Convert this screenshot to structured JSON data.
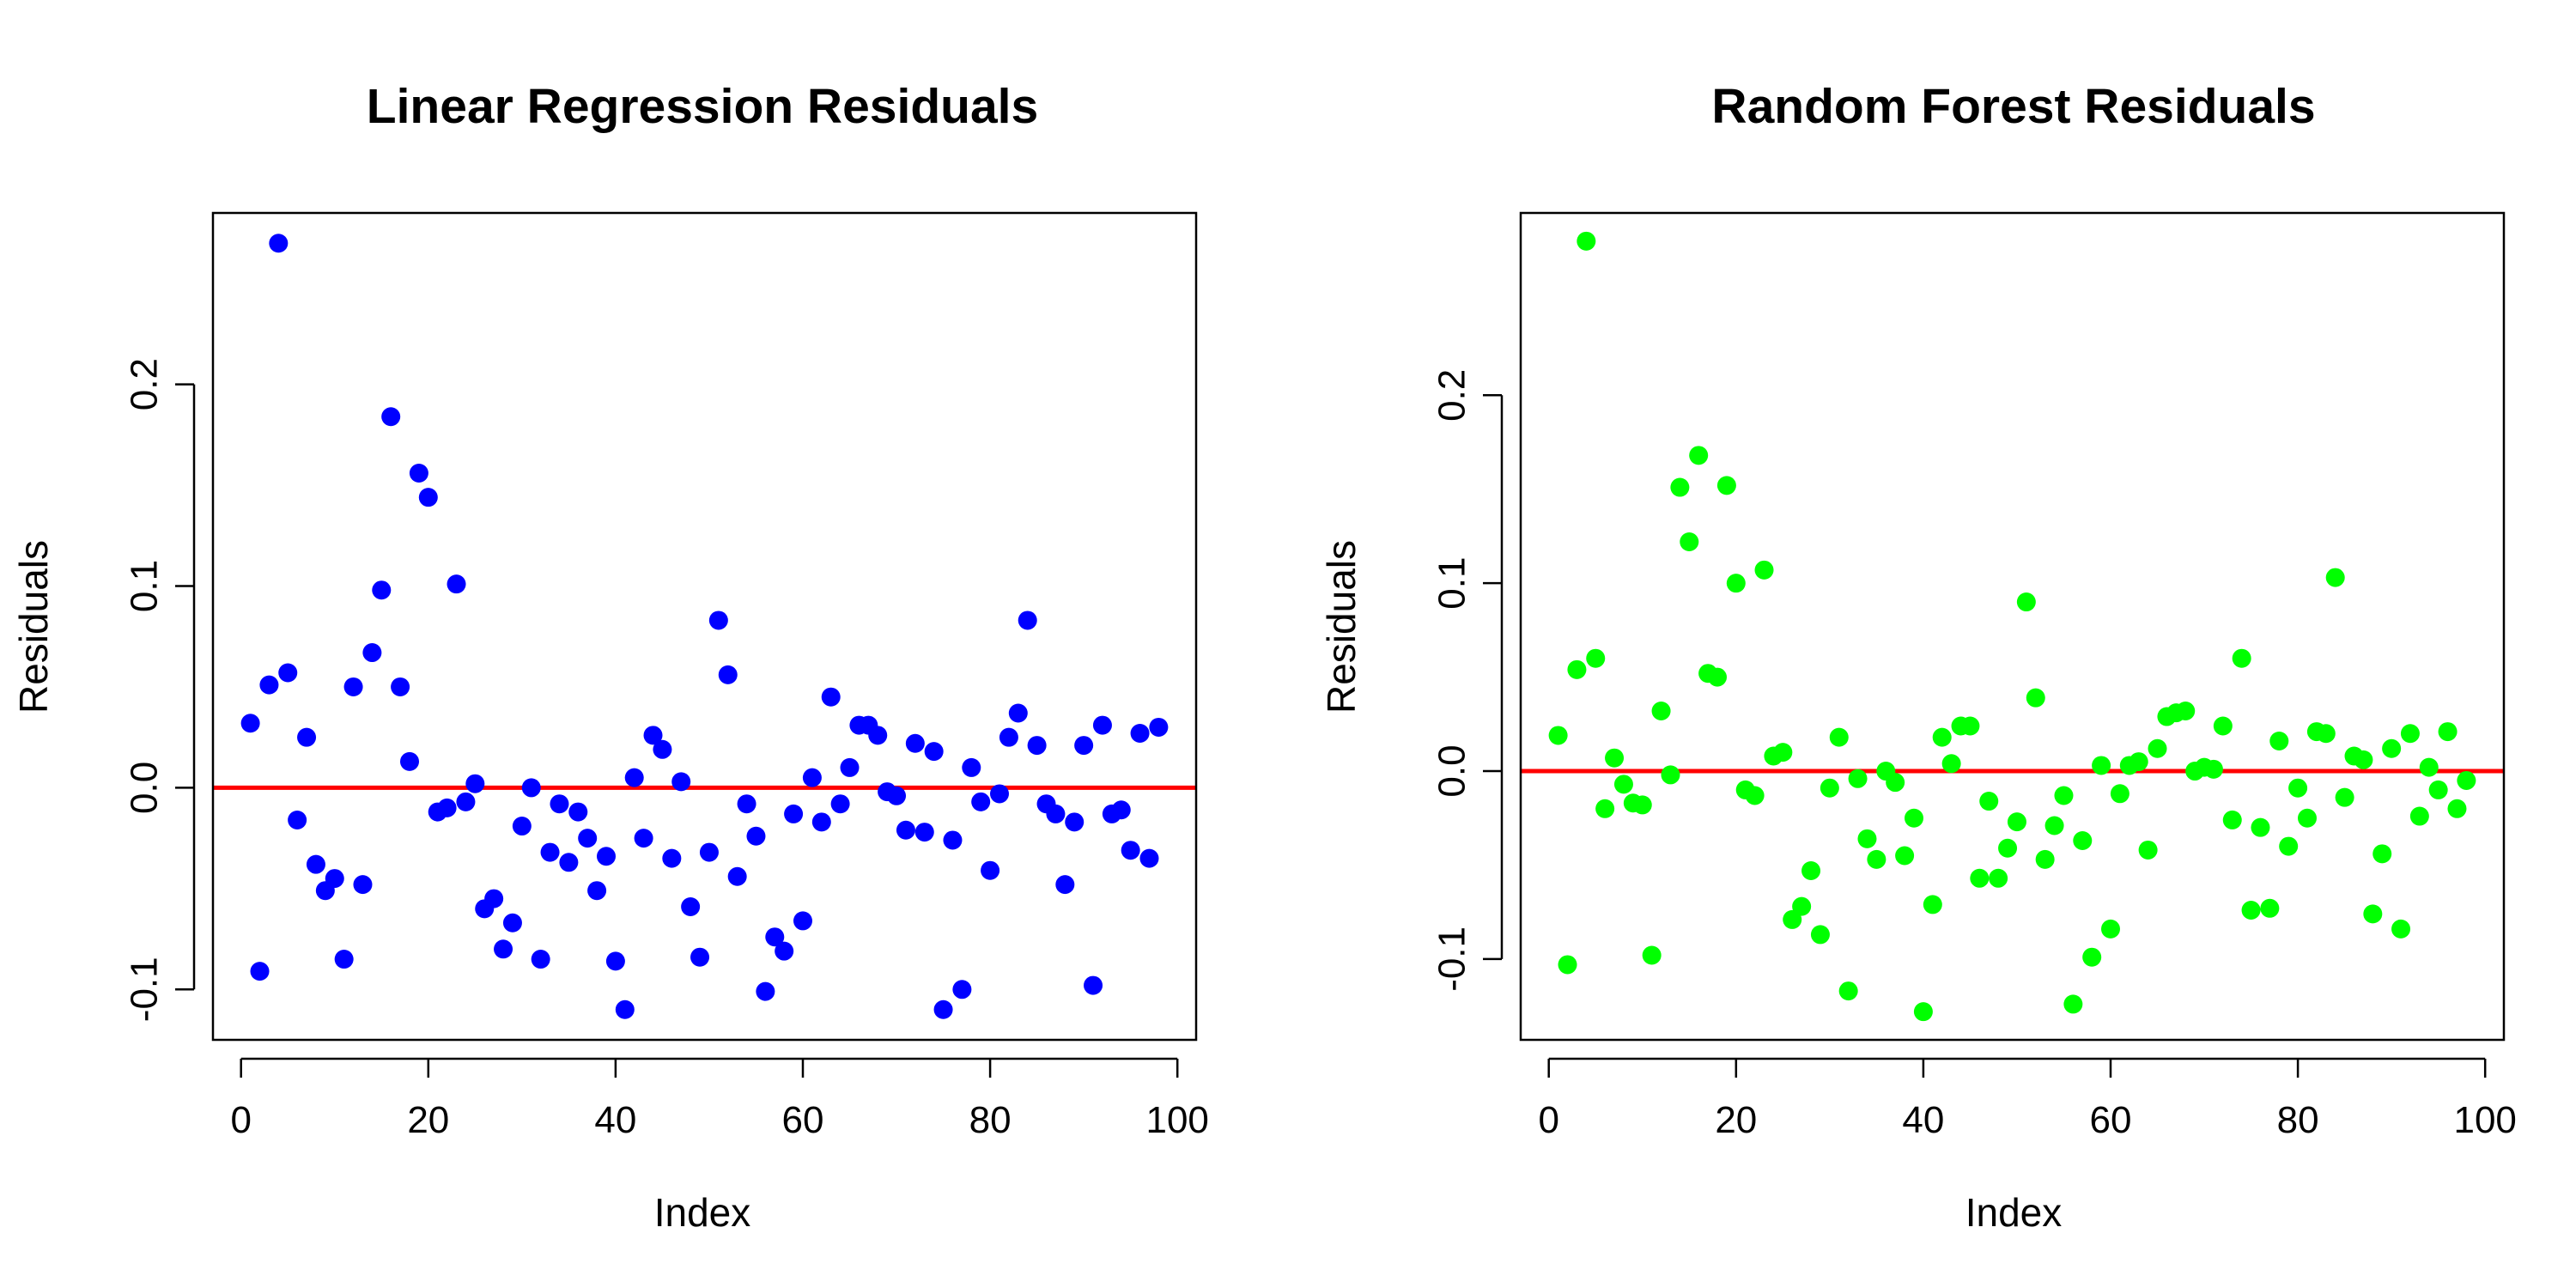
{
  "colors": {
    "zero_line": "#ff0000",
    "axes": "#000000",
    "background": "#ffffff"
  },
  "chart_data": [
    {
      "type": "scatter",
      "title": "Linear Regression Residuals",
      "xlabel": "Index",
      "ylabel": "Residuals",
      "xlim": [
        -3,
        102
      ],
      "ylim": [
        -0.125,
        0.285
      ],
      "xticks": [
        0,
        20,
        40,
        60,
        80,
        100
      ],
      "xtick_labels": [
        "0",
        "20",
        "40",
        "60",
        "80",
        "100"
      ],
      "yticks": [
        -0.1,
        0,
        0.1,
        0.2
      ],
      "ytick_labels": [
        "-0.1",
        "0.0",
        "0.1",
        "0.2"
      ],
      "reference_line": {
        "y": 0,
        "color": "#ff0000"
      },
      "grid": false,
      "legend": "none",
      "series": [
        {
          "color": "#0000ff",
          "x": [
            1,
            2,
            3,
            4,
            5,
            6,
            7,
            8,
            9,
            10,
            11,
            12,
            13,
            14,
            15,
            16,
            17,
            18,
            19,
            20,
            21,
            22,
            23,
            24,
            25,
            26,
            27,
            28,
            29,
            30,
            31,
            32,
            33,
            34,
            35,
            36,
            37,
            38,
            39,
            40,
            41,
            42,
            43,
            44,
            45,
            46,
            47,
            48,
            49,
            50,
            51,
            52,
            53,
            54,
            55,
            56,
            57,
            58,
            59,
            60,
            61,
            62,
            63,
            64,
            65,
            66,
            67,
            68,
            69,
            70,
            71,
            72,
            73,
            74,
            75,
            76,
            77,
            78,
            79,
            80,
            81,
            82,
            83,
            84,
            85,
            86,
            87,
            88,
            89,
            90,
            91,
            92,
            93,
            94,
            95,
            96,
            97,
            98
          ],
          "y": [
            0.032,
            -0.091,
            0.051,
            0.27,
            0.057,
            -0.016,
            0.025,
            -0.038,
            -0.051,
            -0.045,
            -0.085,
            0.05,
            -0.048,
            0.067,
            0.098,
            0.184,
            0.05,
            0.013,
            0.156,
            0.144,
            -0.012,
            -0.01,
            0.101,
            -0.007,
            0.002,
            -0.06,
            -0.055,
            -0.08,
            -0.067,
            -0.019,
            0.0,
            -0.085,
            -0.032,
            -0.008,
            -0.037,
            -0.012,
            -0.025,
            -0.051,
            -0.034,
            -0.086,
            -0.11,
            0.005,
            -0.025,
            0.026,
            0.019,
            -0.035,
            0.003,
            -0.059,
            -0.084,
            -0.032,
            0.083,
            0.056,
            -0.044,
            -0.008,
            -0.024,
            -0.101,
            -0.074,
            -0.081,
            -0.013,
            -0.066,
            0.005,
            -0.017,
            0.045,
            -0.008,
            0.01,
            0.031,
            0.031,
            0.026,
            -0.002,
            -0.004,
            -0.021,
            0.022,
            -0.022,
            0.018,
            -0.11,
            -0.026,
            -0.1,
            0.01,
            -0.007,
            -0.041,
            -0.003,
            0.025,
            0.037,
            0.083,
            0.021,
            -0.008,
            -0.013,
            -0.048,
            -0.017,
            0.021,
            -0.098,
            0.031,
            -0.013,
            -0.011,
            -0.031,
            0.027,
            -0.035,
            0.03
          ]
        }
      ]
    },
    {
      "type": "scatter",
      "title": "Random Forest Residuals",
      "xlabel": "Index",
      "ylabel": "Residuals",
      "xlim": [
        -3,
        102
      ],
      "ylim": [
        -0.143,
        0.297
      ],
      "xticks": [
        0,
        20,
        40,
        60,
        80,
        100
      ],
      "xtick_labels": [
        "0",
        "20",
        "40",
        "60",
        "80",
        "100"
      ],
      "yticks": [
        -0.1,
        0,
        0.1,
        0.2
      ],
      "ytick_labels": [
        "-0.1",
        "0.0",
        "0.1",
        "0.2"
      ],
      "reference_line": {
        "y": 0,
        "color": "#ff0000"
      },
      "grid": false,
      "legend": "none",
      "series": [
        {
          "color": "#00ff00",
          "x": [
            1,
            2,
            3,
            4,
            5,
            6,
            7,
            8,
            9,
            10,
            11,
            12,
            13,
            14,
            15,
            16,
            17,
            18,
            19,
            20,
            21,
            22,
            23,
            24,
            25,
            26,
            27,
            28,
            29,
            30,
            31,
            32,
            33,
            34,
            35,
            36,
            37,
            38,
            39,
            40,
            41,
            42,
            43,
            44,
            45,
            46,
            47,
            48,
            49,
            50,
            51,
            52,
            53,
            54,
            55,
            56,
            57,
            58,
            59,
            60,
            61,
            62,
            63,
            64,
            65,
            66,
            67,
            68,
            69,
            70,
            71,
            72,
            73,
            74,
            75,
            76,
            77,
            78,
            79,
            80,
            81,
            82,
            83,
            84,
            85,
            86,
            87,
            88,
            89,
            90,
            91,
            92,
            93,
            94,
            95,
            96,
            97,
            98
          ],
          "y": [
            0.019,
            -0.103,
            0.054,
            0.282,
            0.06,
            -0.02,
            0.007,
            -0.007,
            -0.017,
            -0.018,
            -0.098,
            0.032,
            -0.002,
            0.151,
            0.122,
            0.168,
            0.052,
            0.05,
            0.152,
            0.1,
            -0.01,
            -0.013,
            0.107,
            0.008,
            0.01,
            -0.079,
            -0.072,
            -0.053,
            -0.087,
            -0.009,
            0.018,
            -0.117,
            -0.004,
            -0.036,
            -0.047,
            0.0,
            -0.006,
            -0.045,
            -0.025,
            -0.128,
            -0.071,
            0.018,
            0.004,
            0.024,
            0.024,
            -0.057,
            -0.016,
            -0.057,
            -0.041,
            -0.027,
            0.09,
            0.039,
            -0.047,
            -0.029,
            -0.013,
            -0.124,
            -0.037,
            -0.099,
            0.003,
            -0.084,
            -0.012,
            0.003,
            0.005,
            -0.042,
            0.012,
            0.029,
            0.031,
            0.032,
            0.0,
            0.002,
            0.001,
            0.024,
            -0.026,
            0.06,
            -0.074,
            -0.03,
            -0.073,
            0.016,
            -0.04,
            -0.009,
            -0.025,
            0.021,
            0.02,
            0.103,
            -0.014,
            0.008,
            0.006,
            -0.076,
            -0.044,
            0.012,
            -0.084,
            0.02,
            -0.024,
            0.002,
            -0.01,
            0.021,
            -0.02,
            -0.005
          ]
        }
      ]
    }
  ]
}
